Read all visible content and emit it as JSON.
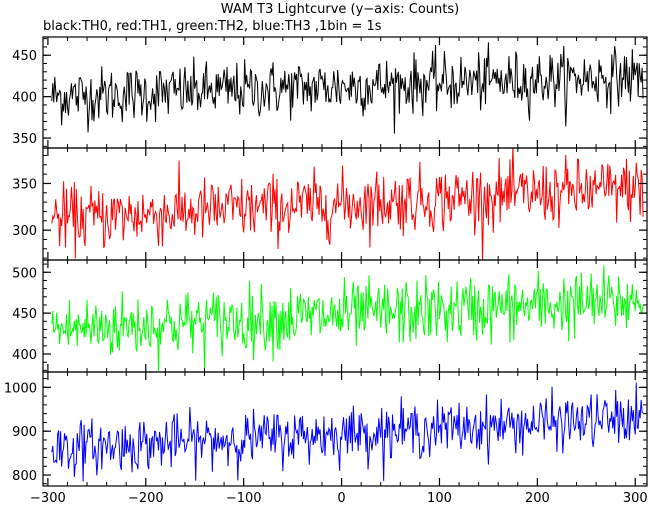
{
  "chart_data": {
    "type": "line",
    "title": "WAM T3 Lightcurve (y−axis: Counts)",
    "subtitle": "black:TH0, red:TH1, green:TH2, blue:TH3 ,1bin = 1s",
    "xlim": [
      -305,
      312
    ],
    "x_ticks": [
      -300,
      -200,
      -100,
      0,
      100,
      200,
      300
    ],
    "x_tick_labels": [
      "−300",
      "−200",
      "−100",
      "0",
      "100",
      "200",
      "300"
    ],
    "x_range_data": [
      -296,
      308
    ],
    "panels": [
      {
        "series": "TH0",
        "color": "#000000",
        "ylim": [
          338,
          472
        ],
        "yticks": [
          350,
          400,
          450
        ],
        "ytick_labels": [
          "350",
          "400",
          "450"
        ],
        "trend_start": 400,
        "trend_end": 425,
        "noise": 17
      },
      {
        "series": "TH1",
        "color": "#ff0000",
        "ylim": [
          268,
          388
        ],
        "yticks": [
          300,
          350
        ],
        "ytick_labels": [
          "300",
          "350"
        ],
        "trend_start": 312,
        "trend_end": 345,
        "noise": 17
      },
      {
        "series": "TH2",
        "color": "#00ff00",
        "ylim": [
          378,
          515
        ],
        "yticks": [
          400,
          450,
          500
        ],
        "ytick_labels": [
          "400",
          "450",
          "500"
        ],
        "trend_start": 430,
        "trend_end": 465,
        "noise": 20
      },
      {
        "series": "TH3",
        "color": "#0000ff",
        "ylim": [
          775,
          1035
        ],
        "yticks": [
          800,
          900,
          1000
        ],
        "ytick_labels": [
          "800",
          "900",
          "1000"
        ],
        "trend_start": 860,
        "trend_end": 930,
        "noise": 30
      }
    ]
  }
}
